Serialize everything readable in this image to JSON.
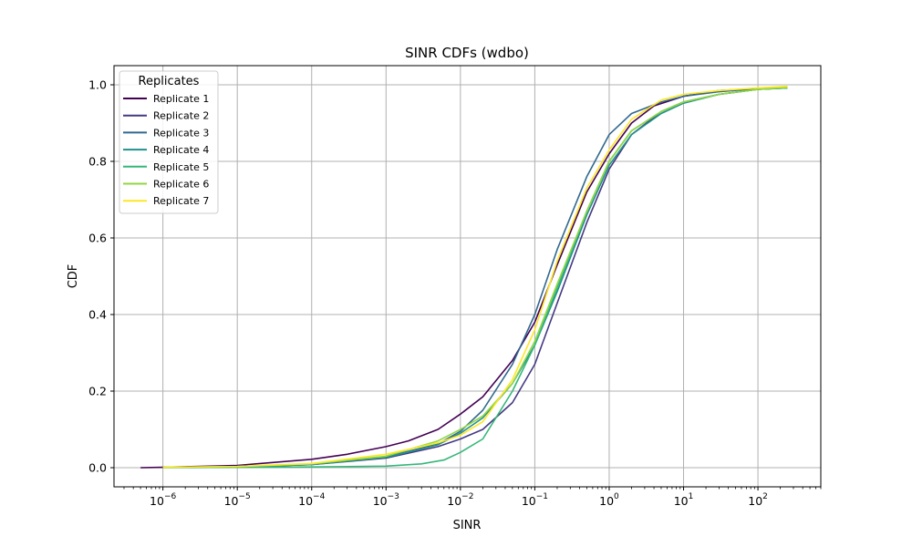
{
  "chart_data": {
    "type": "line",
    "title": "SINR CDFs (wdbo)",
    "xlabel": "SINR",
    "ylabel": "CDF",
    "xscale": "log",
    "xlim": [
      2.2e-07,
      700
    ],
    "ylim": [
      -0.05,
      1.05
    ],
    "grid": true,
    "x_ticks": [
      {
        "base": "10",
        "exp": "−6",
        "value": 1e-06
      },
      {
        "base": "10",
        "exp": "−5",
        "value": 1e-05
      },
      {
        "base": "10",
        "exp": "−4",
        "value": 0.0001
      },
      {
        "base": "10",
        "exp": "−3",
        "value": 0.001
      },
      {
        "base": "10",
        "exp": "−2",
        "value": 0.01
      },
      {
        "base": "10",
        "exp": "−1",
        "value": 0.1
      },
      {
        "base": "10",
        "exp": "0",
        "value": 1
      },
      {
        "base": "10",
        "exp": "1",
        "value": 10
      },
      {
        "base": "10",
        "exp": "2",
        "value": 100
      }
    ],
    "y_ticks": [
      "0.0",
      "0.2",
      "0.4",
      "0.6",
      "0.8",
      "1.0"
    ],
    "legend": {
      "title": "Replicates",
      "placement": "upper-left"
    },
    "series": [
      {
        "name": "Replicate 1",
        "color": "#440154",
        "x": [
          5e-07,
          1e-06,
          1e-05,
          0.0001,
          0.0003,
          0.001,
          0.002,
          0.005,
          0.01,
          0.02,
          0.05,
          0.1,
          0.2,
          0.5,
          1,
          2,
          4,
          10,
          30,
          100,
          250
        ],
        "y": [
          0.0,
          0.001,
          0.006,
          0.022,
          0.035,
          0.055,
          0.07,
          0.1,
          0.14,
          0.185,
          0.28,
          0.38,
          0.53,
          0.72,
          0.82,
          0.9,
          0.945,
          0.97,
          0.985,
          0.99,
          0.993
        ]
      },
      {
        "name": "Replicate 2",
        "color": "#443983",
        "x": [
          1e-06,
          1e-05,
          0.0001,
          0.001,
          0.005,
          0.01,
          0.02,
          0.05,
          0.1,
          0.2,
          0.5,
          1,
          2,
          5,
          10,
          30,
          100,
          250
        ],
        "y": [
          0.001,
          0.002,
          0.008,
          0.025,
          0.055,
          0.075,
          0.1,
          0.17,
          0.27,
          0.43,
          0.64,
          0.78,
          0.87,
          0.93,
          0.955,
          0.975,
          0.988,
          0.992
        ]
      },
      {
        "name": "Replicate 3",
        "color": "#31688e",
        "x": [
          1e-06,
          1e-05,
          0.0001,
          0.001,
          0.005,
          0.01,
          0.02,
          0.05,
          0.1,
          0.2,
          0.5,
          1,
          2,
          5,
          10,
          30,
          100,
          250
        ],
        "y": [
          0.001,
          0.002,
          0.009,
          0.028,
          0.062,
          0.095,
          0.15,
          0.27,
          0.4,
          0.57,
          0.76,
          0.87,
          0.925,
          0.955,
          0.97,
          0.982,
          0.99,
          0.993
        ]
      },
      {
        "name": "Replicate 4",
        "color": "#21918c",
        "x": [
          1e-06,
          1e-05,
          0.0001,
          0.001,
          0.005,
          0.01,
          0.02,
          0.05,
          0.1,
          0.2,
          0.5,
          1,
          2,
          5,
          10,
          30,
          100,
          250
        ],
        "y": [
          0.001,
          0.002,
          0.008,
          0.027,
          0.06,
          0.09,
          0.13,
          0.22,
          0.32,
          0.46,
          0.66,
          0.79,
          0.87,
          0.925,
          0.952,
          0.975,
          0.988,
          0.992
        ]
      },
      {
        "name": "Replicate 5",
        "color": "#35b779",
        "x": [
          1e-06,
          1e-05,
          0.0001,
          0.001,
          0.003,
          0.006,
          0.01,
          0.02,
          0.05,
          0.1,
          0.2,
          0.5,
          1,
          2,
          5,
          10,
          30,
          100,
          250
        ],
        "y": [
          0.0,
          0.001,
          0.002,
          0.004,
          0.01,
          0.02,
          0.04,
          0.075,
          0.2,
          0.32,
          0.47,
          0.67,
          0.8,
          0.88,
          0.93,
          0.955,
          0.975,
          0.988,
          0.992
        ]
      },
      {
        "name": "Replicate 6",
        "color": "#90d743",
        "x": [
          1e-06,
          1e-05,
          0.0001,
          0.001,
          0.005,
          0.01,
          0.02,
          0.05,
          0.1,
          0.2,
          0.5,
          1,
          2,
          5,
          10,
          30,
          100,
          250
        ],
        "y": [
          0.001,
          0.003,
          0.01,
          0.03,
          0.07,
          0.1,
          0.135,
          0.22,
          0.33,
          0.48,
          0.67,
          0.8,
          0.88,
          0.93,
          0.955,
          0.975,
          0.988,
          0.993
        ]
      },
      {
        "name": "Replicate 7",
        "color": "#fde725",
        "x": [
          1e-06,
          1e-05,
          0.0001,
          0.001,
          0.005,
          0.01,
          0.02,
          0.05,
          0.1,
          0.2,
          0.5,
          1,
          2,
          5,
          10,
          30,
          100,
          250
        ],
        "y": [
          0.001,
          0.003,
          0.011,
          0.035,
          0.065,
          0.085,
          0.12,
          0.23,
          0.36,
          0.54,
          0.73,
          0.83,
          0.91,
          0.96,
          0.975,
          0.985,
          0.992,
          0.996
        ]
      }
    ]
  }
}
